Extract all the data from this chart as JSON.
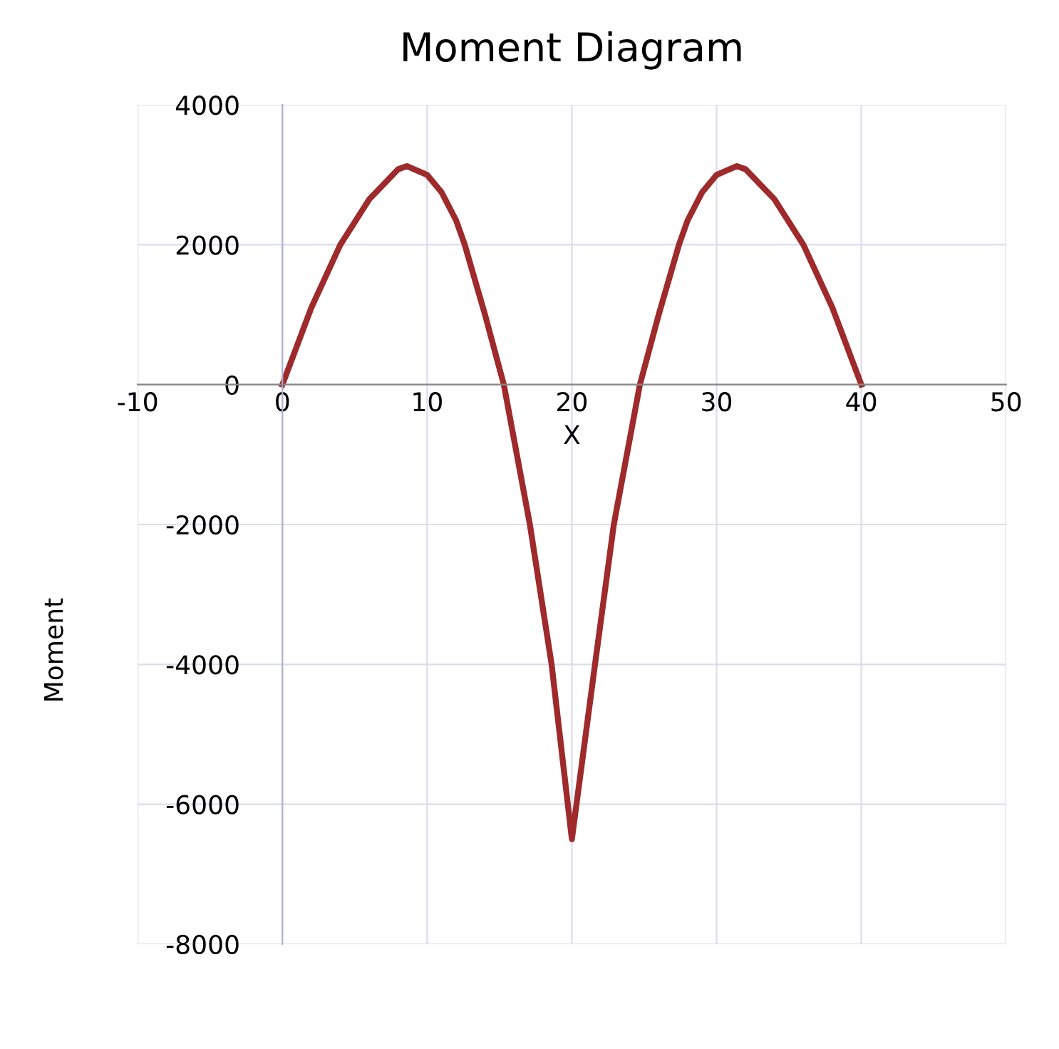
{
  "chart_data": {
    "type": "line",
    "title": "Moment Diagram",
    "xlabel": "X",
    "ylabel": "Moment",
    "series": [
      {
        "color": "#9e2a2b",
        "x": [
          0,
          2,
          4,
          6,
          8,
          8.6,
          10,
          11,
          12,
          12.6,
          14,
          15.3,
          17.1,
          18.6,
          20,
          21.6,
          22.9,
          24.7,
          26,
          27.4,
          28,
          29,
          30,
          31.4,
          32,
          34,
          36,
          38,
          40
        ],
        "values": [
          0,
          1100,
          2000,
          2650,
          3080,
          3125,
          3000,
          2750,
          2350,
          2000,
          1000,
          0,
          -2000,
          -4000,
          -6500,
          -4000,
          -2000,
          0,
          1000,
          2000,
          2350,
          2750,
          3000,
          3125,
          3080,
          2650,
          2000,
          1100,
          0
        ]
      }
    ],
    "xlim": [
      -10,
      50
    ],
    "xticks": [
      -10,
      0,
      10,
      20,
      30,
      40,
      50
    ],
    "ylim": [
      -8000,
      4000
    ],
    "yticks": [
      -8000,
      -6000,
      -4000,
      -2000,
      0,
      2000,
      4000
    ],
    "grid": true,
    "legend": false,
    "marker": "none",
    "line_style": "solid"
  }
}
